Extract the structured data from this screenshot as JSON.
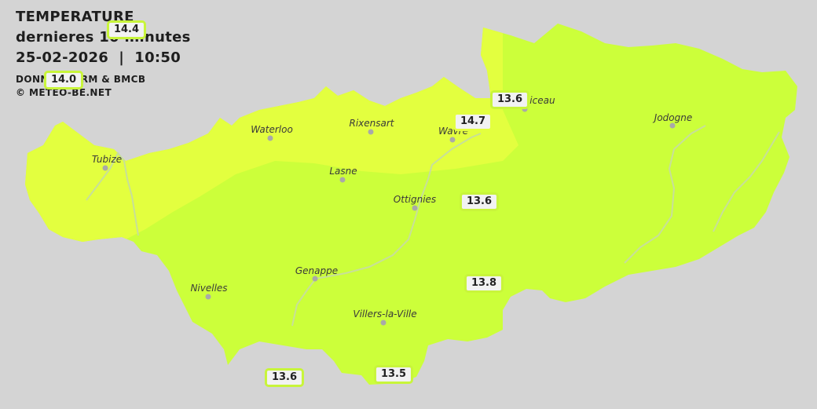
{
  "header": {
    "title": "TEMPERATURE",
    "subtitle": "dernieres 10 minutes",
    "datetime": "25-02-2026  |  10:50",
    "source": "DONNEES: IRM & BMCB",
    "copyright": "© METEO-BE.NET"
  },
  "colors": {
    "background": "#d4d4d4",
    "zone_warm": "#e3ff3f",
    "zone_mild": "#ccff3a",
    "river": "#c7df9a",
    "badge_border": "#c8f53a"
  },
  "cities": [
    {
      "name": "Tubize"
    },
    {
      "name": "Waterloo"
    },
    {
      "name": "Rixensart"
    },
    {
      "name": "Wavre"
    },
    {
      "name": "Grez-Doiceau"
    },
    {
      "name": "Jodogne"
    },
    {
      "name": "Lasne"
    },
    {
      "name": "Ottignies"
    },
    {
      "name": "Genappe"
    },
    {
      "name": "Nivelles"
    },
    {
      "name": "Villers-la-Ville"
    }
  ],
  "temperatures": [
    "14.4",
    "14.0",
    "13.6",
    "14.7",
    "13.6",
    "13.8",
    "13.6",
    "13.5"
  ]
}
